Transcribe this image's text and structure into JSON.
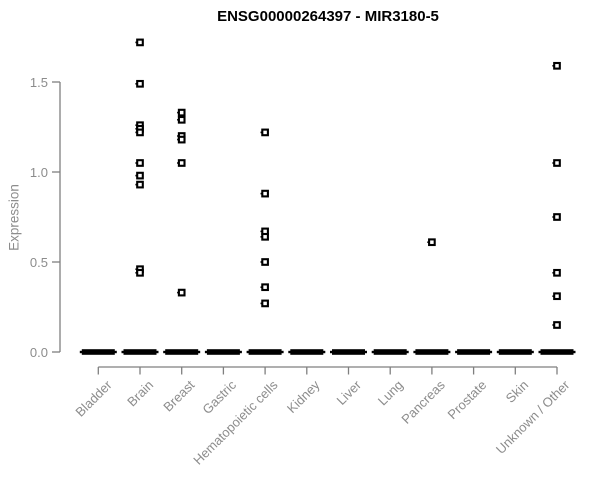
{
  "title": "ENSG00000264397 - MIR3180-5",
  "colors": {
    "background": "#ffffff",
    "title": "#000000",
    "axis": "#7f7f7f",
    "axis_labels": "#8c8c8c",
    "points": "#000000"
  },
  "chart_data": {
    "type": "scatter",
    "subtype": "strip-plot",
    "title": "ENSG00000264397 - MIR3180-5",
    "xlabel": "",
    "ylabel": "Expression",
    "ylim": [
      0.0,
      1.8
    ],
    "yticks": [
      0.0,
      0.5,
      1.0,
      1.5
    ],
    "grid": false,
    "legend": false,
    "point_marker": "open-square",
    "zero_cluster_note": "thick black dash at y=0 in every category formed by many overlapping points",
    "categories": [
      "Bladder",
      "Brain",
      "Breast",
      "Gastric",
      "Hematopoietic cells",
      "Kidney",
      "Liver",
      "Lung",
      "Pancreas",
      "Prostate",
      "Skin",
      "Unknown / Other"
    ],
    "series": [
      {
        "category": "Bladder",
        "zero_cluster": true,
        "values": []
      },
      {
        "category": "Brain",
        "zero_cluster": true,
        "values": [
          1.72,
          1.49,
          1.26,
          1.24,
          1.22,
          1.05,
          0.98,
          0.93,
          0.46,
          0.44
        ]
      },
      {
        "category": "Breast",
        "zero_cluster": true,
        "values": [
          1.33,
          1.29,
          1.2,
          1.18,
          1.05,
          0.33
        ]
      },
      {
        "category": "Gastric",
        "zero_cluster": true,
        "values": []
      },
      {
        "category": "Hematopoietic cells",
        "zero_cluster": true,
        "values": [
          1.22,
          0.88,
          0.67,
          0.64,
          0.5,
          0.36,
          0.27
        ]
      },
      {
        "category": "Kidney",
        "zero_cluster": true,
        "values": []
      },
      {
        "category": "Liver",
        "zero_cluster": true,
        "values": []
      },
      {
        "category": "Lung",
        "zero_cluster": true,
        "values": []
      },
      {
        "category": "Pancreas",
        "zero_cluster": true,
        "values": [
          0.61
        ]
      },
      {
        "category": "Prostate",
        "zero_cluster": true,
        "values": []
      },
      {
        "category": "Skin",
        "zero_cluster": true,
        "values": []
      },
      {
        "category": "Unknown / Other",
        "zero_cluster": true,
        "values": [
          1.59,
          1.05,
          0.75,
          0.44,
          0.31,
          0.15
        ]
      }
    ]
  }
}
